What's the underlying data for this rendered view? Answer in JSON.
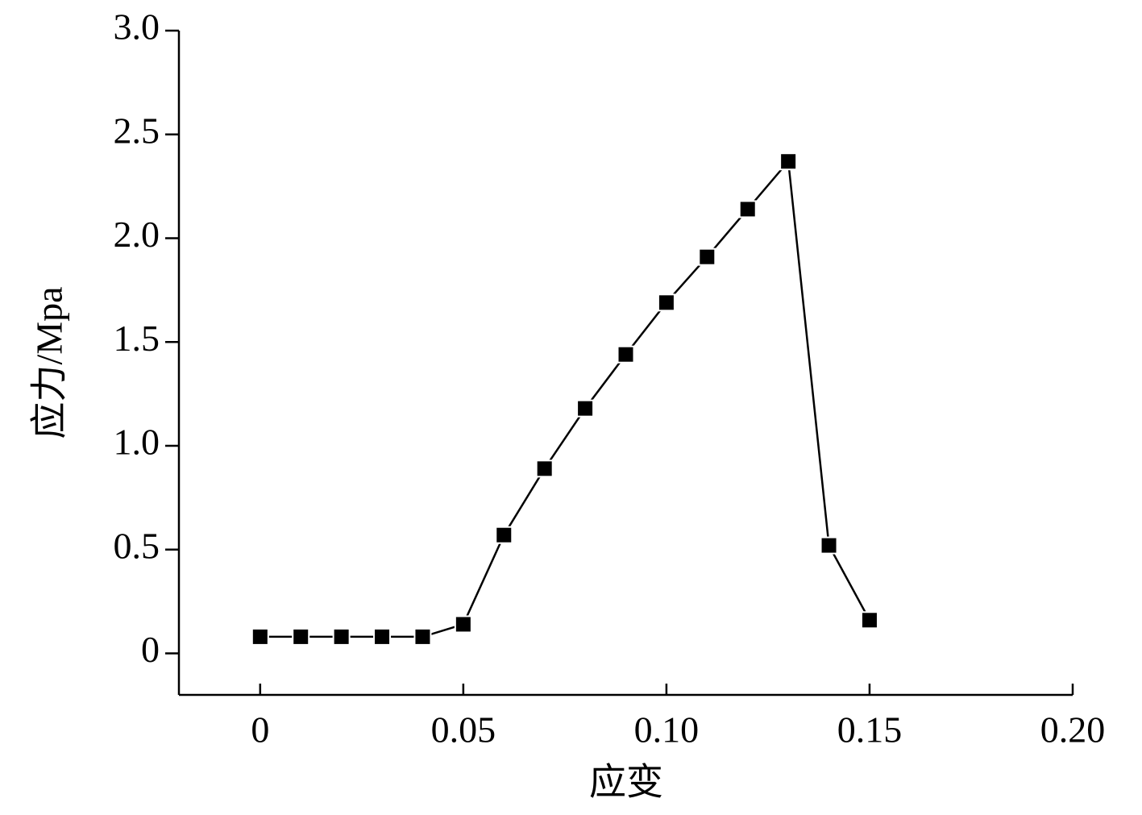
{
  "chart_data": {
    "type": "line",
    "x_label": "应变",
    "y_label": "应力/Mpa",
    "x": [
      0,
      0.01,
      0.02,
      0.03,
      0.04,
      0.05,
      0.06,
      0.07,
      0.08,
      0.09,
      0.1,
      0.11,
      0.12,
      0.13,
      0.14,
      0.15
    ],
    "series": [
      {
        "color": "#000000",
        "values": [
          0.08,
          0.08,
          0.08,
          0.08,
          0.08,
          0.14,
          0.57,
          0.89,
          1.18,
          1.44,
          1.69,
          1.91,
          2.14,
          2.37,
          0.52,
          0.16
        ]
      }
    ],
    "xlim": [
      -0.02,
      0.2
    ],
    "xticks": [
      0,
      0.05,
      {
        "value": 0.1,
        "label": "0.10"
      },
      0.15,
      {
        "value": 0.2,
        "label": "0.20"
      }
    ],
    "ylim": [
      -0.2,
      3.0
    ],
    "yticks": [
      0,
      0.5,
      {
        "value": 1,
        "label": "1.0"
      },
      1.5,
      {
        "value": 2,
        "label": "2.0"
      },
      2.5,
      {
        "value": 3,
        "label": "3.0"
      }
    ],
    "grid": false
  }
}
